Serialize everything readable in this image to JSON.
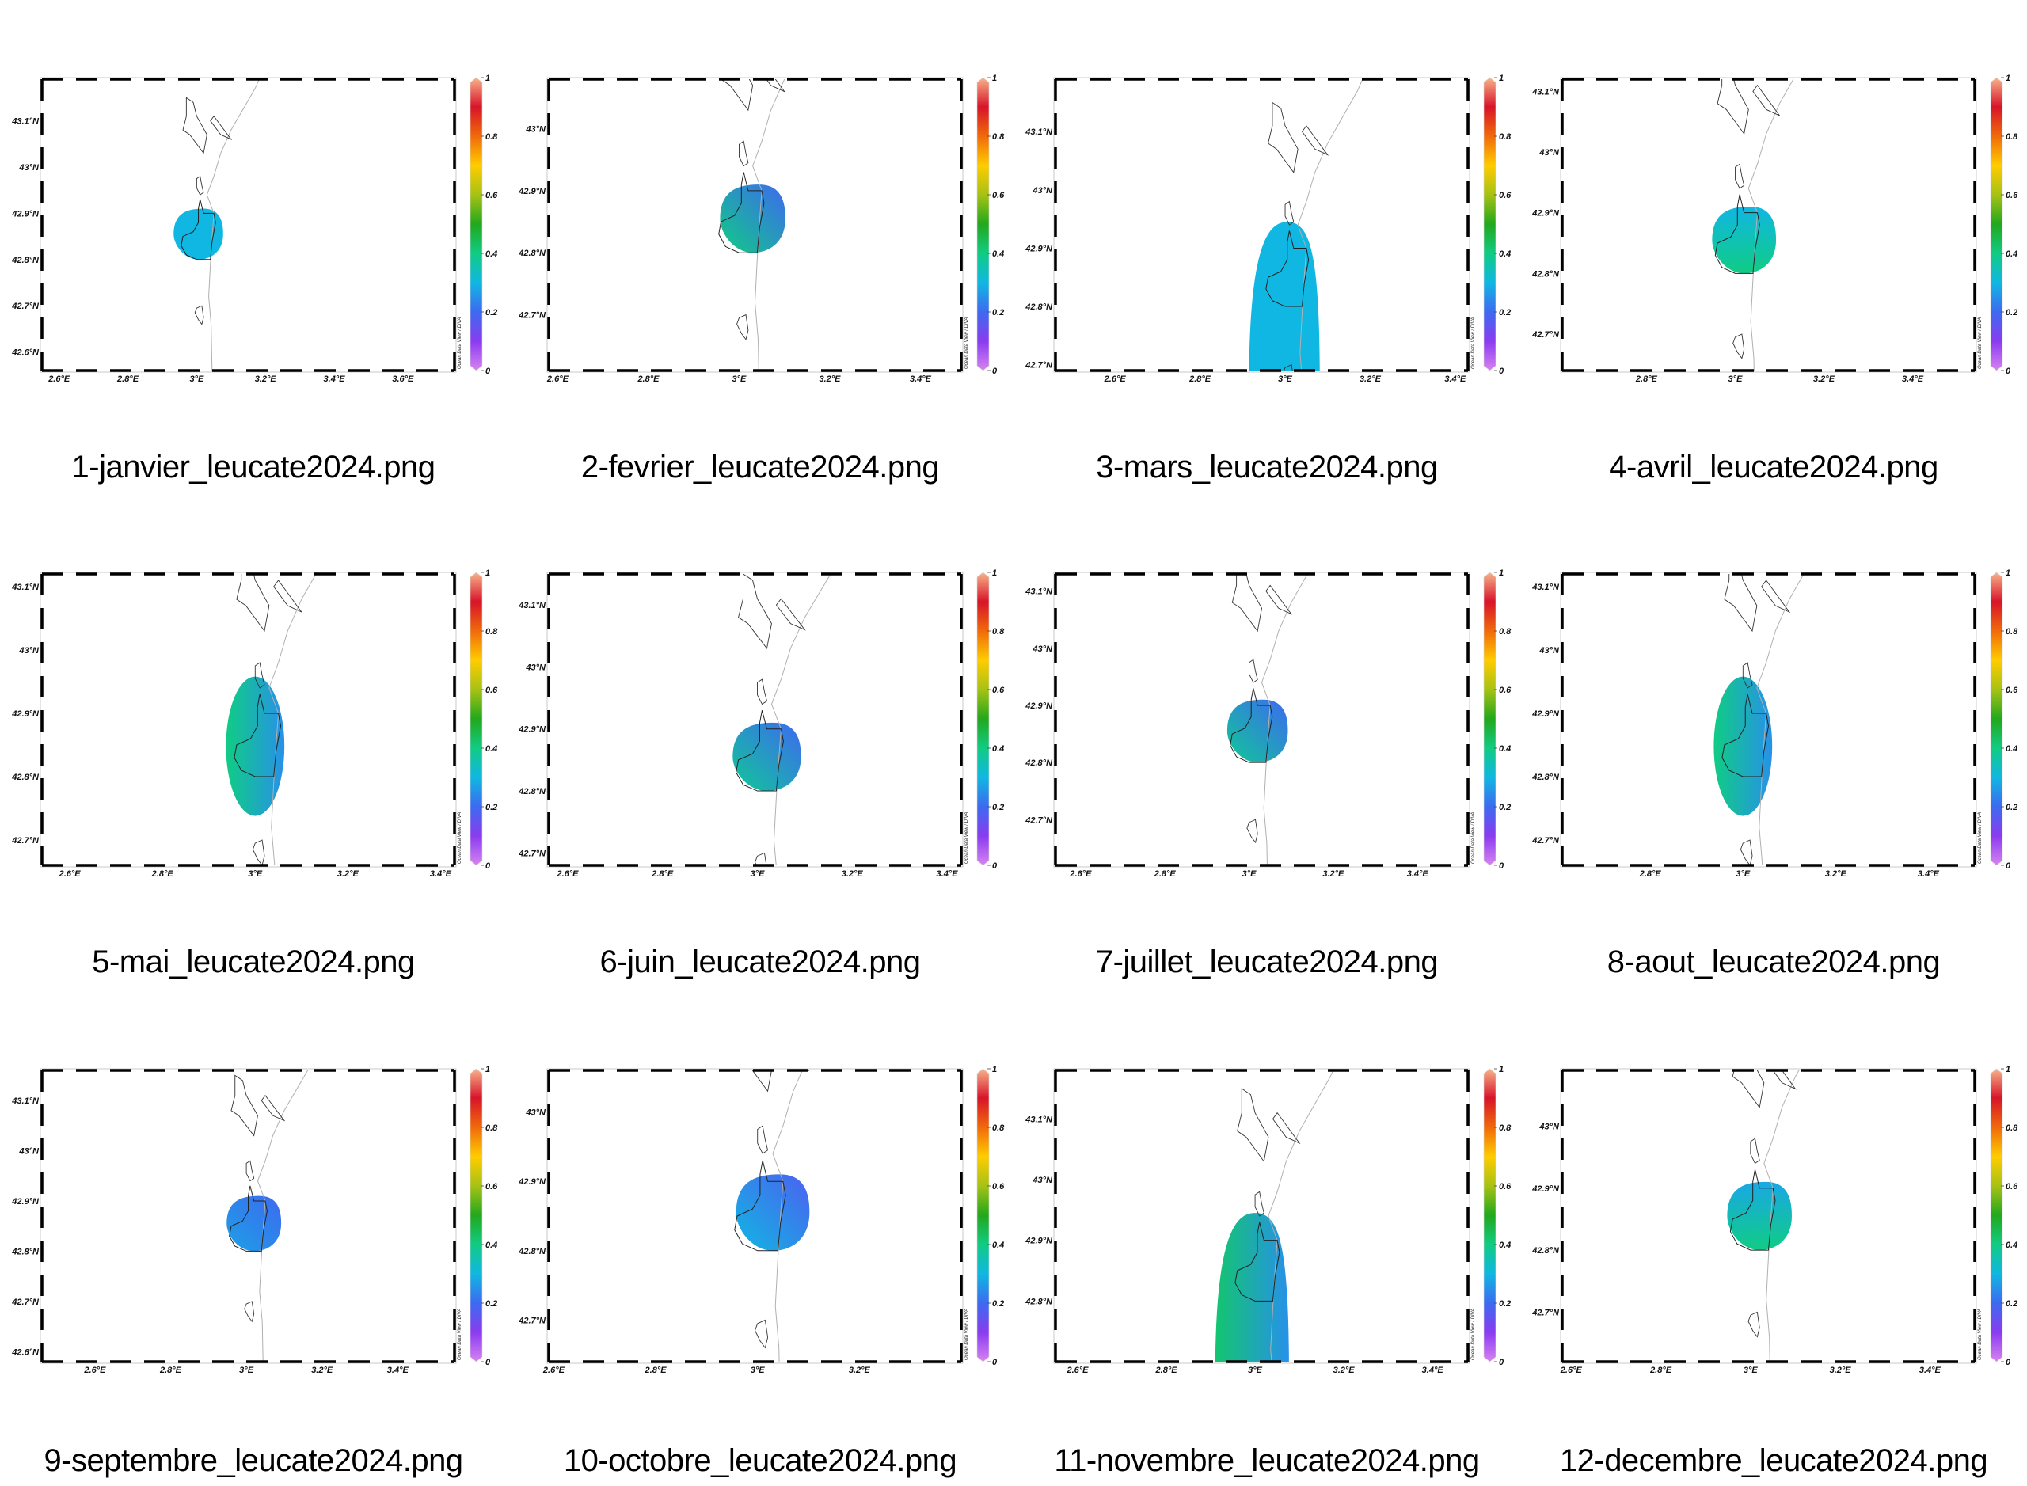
{
  "page": {
    "background": "#ffffff"
  },
  "colorbar": {
    "min": 0,
    "max": 1,
    "ticks": [
      0,
      0.2,
      0.4,
      0.6,
      0.8,
      1
    ],
    "tick_labels": [
      "0",
      "0.2",
      "0.4",
      "0.6",
      "0.8",
      "1"
    ],
    "stops": [
      {
        "v": 0.0,
        "color": "#d783f0"
      },
      {
        "v": 0.1,
        "color": "#8a3cf0"
      },
      {
        "v": 0.2,
        "color": "#3d6af0"
      },
      {
        "v": 0.3,
        "color": "#10b7e2"
      },
      {
        "v": 0.4,
        "color": "#10cc84"
      },
      {
        "v": 0.5,
        "color": "#22a81c"
      },
      {
        "v": 0.6,
        "color": "#a6c214"
      },
      {
        "v": 0.7,
        "color": "#ffcc00"
      },
      {
        "v": 0.8,
        "color": "#f06a0a"
      },
      {
        "v": 0.9,
        "color": "#d8142a"
      },
      {
        "v": 1.0,
        "color": "#f8b48a"
      }
    ],
    "credit": "Ocean Data View / DIVA"
  },
  "chart_data": [
    {
      "type": "heatmap",
      "title": "1-janvier_leucate2024.png",
      "lon_range": [
        2.55,
        3.75
      ],
      "lat_range": [
        42.56,
        43.19
      ],
      "xticks": [
        2.6,
        2.8,
        3.0,
        3.2,
        3.4,
        3.6
      ],
      "xtick_labels": [
        "2.6°E",
        "2.8°E",
        "3°E",
        "3.2°E",
        "3.4°E",
        "3.6°E"
      ],
      "yticks": [
        42.6,
        42.7,
        42.8,
        42.9,
        43.0,
        43.1
      ],
      "ytick_labels": [
        "42.6°N",
        "42.7°N",
        "42.8°N",
        "42.9°N",
        "43°N",
        "43.1°N"
      ],
      "field": {
        "shape": "blob",
        "center": [
          3.005,
          42.855
        ],
        "radius": [
          0.072,
          0.055
        ],
        "value_start": 0.3,
        "value_end": 0.3,
        "gradient_dir": "south-north"
      }
    },
    {
      "type": "heatmap",
      "title": "2-fevrier_leucate2024.png",
      "lon_range": [
        2.58,
        3.49
      ],
      "lat_range": [
        42.61,
        43.08
      ],
      "xticks": [
        2.6,
        2.8,
        3.0,
        3.2,
        3.4
      ],
      "xtick_labels": [
        "2.6°E",
        "2.8°E",
        "3°E",
        "3.2°E",
        "3.4°E"
      ],
      "yticks": [
        42.7,
        42.8,
        42.9,
        43.0
      ],
      "ytick_labels": [
        "42.7°N",
        "42.8°N",
        "42.9°N",
        "43°N"
      ],
      "field": {
        "shape": "blob",
        "center": [
          3.03,
          42.855
        ],
        "radius": [
          0.072,
          0.055
        ],
        "value_start": 0.4,
        "value_end": 0.2,
        "gradient_dir": "southwest-northeast"
      }
    },
    {
      "type": "heatmap",
      "title": "3-mars_leucate2024.png",
      "lon_range": [
        2.46,
        3.43
      ],
      "lat_range": [
        42.69,
        43.19
      ],
      "xticks": [
        2.6,
        2.8,
        3.0,
        3.2,
        3.4
      ],
      "xtick_labels": [
        "2.6°E",
        "2.8°E",
        "3°E",
        "3.2°E",
        "3.4°E"
      ],
      "yticks": [
        42.7,
        42.8,
        42.9,
        43.0,
        43.1
      ],
      "ytick_labels": [
        "42.7°N",
        "42.8°N",
        "42.9°N",
        "43°N",
        "43.1°N"
      ],
      "field": {
        "shape": "dome",
        "center": [
          3.005,
          42.945
        ],
        "radius": [
          0.09,
          0.255
        ],
        "value_start": 0.3,
        "value_end": 0.3,
        "gradient_dir": "west-east"
      }
    },
    {
      "type": "heatmap",
      "title": "4-avril_leucate2024.png",
      "lon_range": [
        2.61,
        3.54
      ],
      "lat_range": [
        42.64,
        43.12
      ],
      "xticks": [
        2.8,
        3.0,
        3.2,
        3.4
      ],
      "xtick_labels": [
        "2.8°E",
        "3°E",
        "3.2°E",
        "3.4°E"
      ],
      "yticks": [
        42.7,
        42.8,
        42.9,
        43.0,
        43.1
      ],
      "ytick_labels": [
        "42.7°N",
        "42.8°N",
        "42.9°N",
        "43°N",
        "43.1°N"
      ],
      "field": {
        "shape": "blob",
        "center": [
          3.02,
          42.855
        ],
        "radius": [
          0.072,
          0.055
        ],
        "value_start": 0.4,
        "value_end": 0.3,
        "gradient_dir": "south-north"
      }
    },
    {
      "type": "heatmap",
      "title": "5-mai_leucate2024.png",
      "lon_range": [
        2.54,
        3.43
      ],
      "lat_range": [
        42.66,
        43.12
      ],
      "xticks": [
        2.6,
        2.8,
        3.0,
        3.2,
        3.4
      ],
      "xtick_labels": [
        "2.6°E",
        "2.8°E",
        "3°E",
        "3.2°E",
        "3.4°E"
      ],
      "yticks": [
        42.7,
        42.8,
        42.9,
        43.0,
        43.1
      ],
      "ytick_labels": [
        "42.7°N",
        "42.8°N",
        "42.9°N",
        "43°N",
        "43.1°N"
      ],
      "field": {
        "shape": "ellipse",
        "center": [
          3.0,
          42.848
        ],
        "radius": [
          0.063,
          0.11
        ],
        "value_start": 0.4,
        "value_end": 0.25,
        "gradient_dir": "west-east"
      }
    },
    {
      "type": "heatmap",
      "title": "6-juin_leucate2024.png",
      "lon_range": [
        2.56,
        3.43
      ],
      "lat_range": [
        42.68,
        43.15
      ],
      "xticks": [
        2.6,
        2.8,
        3.0,
        3.2,
        3.4
      ],
      "xtick_labels": [
        "2.6°E",
        "2.8°E",
        "3°E",
        "3.2°E",
        "3.4°E"
      ],
      "yticks": [
        42.7,
        42.8,
        42.9,
        43.0,
        43.1
      ],
      "ytick_labels": [
        "42.7°N",
        "42.8°N",
        "42.9°N",
        "43°N",
        "43.1°N"
      ],
      "field": {
        "shape": "blob",
        "center": [
          3.02,
          42.855
        ],
        "radius": [
          0.072,
          0.055
        ],
        "value_start": 0.38,
        "value_end": 0.2,
        "gradient_dir": "southwest-northeast"
      }
    },
    {
      "type": "heatmap",
      "title": "7-juillet_leucate2024.png",
      "lon_range": [
        2.54,
        3.52
      ],
      "lat_range": [
        42.62,
        43.13
      ],
      "xticks": [
        2.6,
        2.8,
        3.0,
        3.2,
        3.4
      ],
      "xtick_labels": [
        "2.6°E",
        "2.8°E",
        "3°E",
        "3.2°E",
        "3.4°E"
      ],
      "yticks": [
        42.7,
        42.8,
        42.9,
        43.0,
        43.1
      ],
      "ytick_labels": [
        "42.7°N",
        "42.8°N",
        "42.9°N",
        "43°N",
        "43.1°N"
      ],
      "field": {
        "shape": "blob",
        "center": [
          3.02,
          42.855
        ],
        "radius": [
          0.072,
          0.055
        ],
        "value_start": 0.38,
        "value_end": 0.2,
        "gradient_dir": "southwest-northeast"
      }
    },
    {
      "type": "heatmap",
      "title": "8-aout_leucate2024.png",
      "lon_range": [
        2.61,
        3.5
      ],
      "lat_range": [
        42.66,
        43.12
      ],
      "xticks": [
        2.8,
        3.0,
        3.2,
        3.4
      ],
      "xtick_labels": [
        "2.8°E",
        "3°E",
        "3.2°E",
        "3.4°E"
      ],
      "yticks": [
        42.7,
        42.8,
        42.9,
        43.0,
        43.1
      ],
      "ytick_labels": [
        "42.7°N",
        "42.8°N",
        "42.9°N",
        "43°N",
        "43.1°N"
      ],
      "field": {
        "shape": "ellipse",
        "center": [
          3.0,
          42.848
        ],
        "radius": [
          0.063,
          0.11
        ],
        "value_start": 0.4,
        "value_end": 0.25,
        "gradient_dir": "west-east"
      }
    },
    {
      "type": "heatmap",
      "title": "9-septembre_leucate2024.png",
      "lon_range": [
        2.46,
        3.55
      ],
      "lat_range": [
        42.58,
        43.16
      ],
      "xticks": [
        2.6,
        2.8,
        3.0,
        3.2,
        3.4
      ],
      "xtick_labels": [
        "2.6°E",
        "2.8°E",
        "3°E",
        "3.2°E",
        "3.4°E"
      ],
      "yticks": [
        42.6,
        42.7,
        42.8,
        42.9,
        43.0,
        43.1
      ],
      "ytick_labels": [
        "42.6°N",
        "42.7°N",
        "42.8°N",
        "42.9°N",
        "43°N",
        "43.1°N"
      ],
      "field": {
        "shape": "blob",
        "center": [
          3.02,
          42.855
        ],
        "radius": [
          0.072,
          0.055
        ],
        "value_start": 0.27,
        "value_end": 0.2,
        "gradient_dir": "southwest-northeast"
      }
    },
    {
      "type": "heatmap",
      "title": "10-octobre_leucate2024.png",
      "lon_range": [
        2.59,
        3.4
      ],
      "lat_range": [
        42.64,
        43.06
      ],
      "xticks": [
        2.6,
        2.8,
        3.0,
        3.2
      ],
      "xtick_labels": [
        "2.6°E",
        "2.8°E",
        "3°E",
        "3.2°E"
      ],
      "yticks": [
        42.7,
        42.8,
        42.9,
        43.0
      ],
      "ytick_labels": [
        "42.7°N",
        "42.8°N",
        "42.9°N",
        "43°N"
      ],
      "field": {
        "shape": "blob",
        "center": [
          3.03,
          42.855
        ],
        "radius": [
          0.072,
          0.055
        ],
        "value_start": 0.3,
        "value_end": 0.18,
        "gradient_dir": "southwest-northeast"
      }
    },
    {
      "type": "heatmap",
      "title": "11-novembre_leucate2024.png",
      "lon_range": [
        2.55,
        3.48
      ],
      "lat_range": [
        42.7,
        43.18
      ],
      "xticks": [
        2.6,
        2.8,
        3.0,
        3.2,
        3.4
      ],
      "xtick_labels": [
        "2.6°E",
        "2.8°E",
        "3°E",
        "3.2°E",
        "3.4°E"
      ],
      "yticks": [
        42.8,
        42.9,
        43.0,
        43.1
      ],
      "ytick_labels": [
        "42.8°N",
        "42.9°N",
        "43°N",
        "43.1°N"
      ],
      "field": {
        "shape": "dome",
        "center": [
          3.0,
          42.945
        ],
        "radius": [
          0.09,
          0.245
        ],
        "value_start": 0.42,
        "value_end": 0.25,
        "gradient_dir": "west-east"
      }
    },
    {
      "type": "heatmap",
      "title": "12-decembre_leucate2024.png",
      "lon_range": [
        2.58,
        3.5
      ],
      "lat_range": [
        42.62,
        43.09
      ],
      "xticks": [
        2.6,
        2.8,
        3.0,
        3.2,
        3.4
      ],
      "xtick_labels": [
        "2.6°E",
        "2.8°E",
        "3°E",
        "3.2°E",
        "3.4°E"
      ],
      "yticks": [
        42.7,
        42.8,
        42.9,
        43.0
      ],
      "ytick_labels": [
        "42.7°N",
        "42.8°N",
        "42.9°N",
        "43°N"
      ],
      "field": {
        "shape": "blob",
        "center": [
          3.02,
          42.855
        ],
        "radius": [
          0.072,
          0.055
        ],
        "value_start": 0.4,
        "value_end": 0.28,
        "gradient_dir": "south-north"
      }
    }
  ]
}
